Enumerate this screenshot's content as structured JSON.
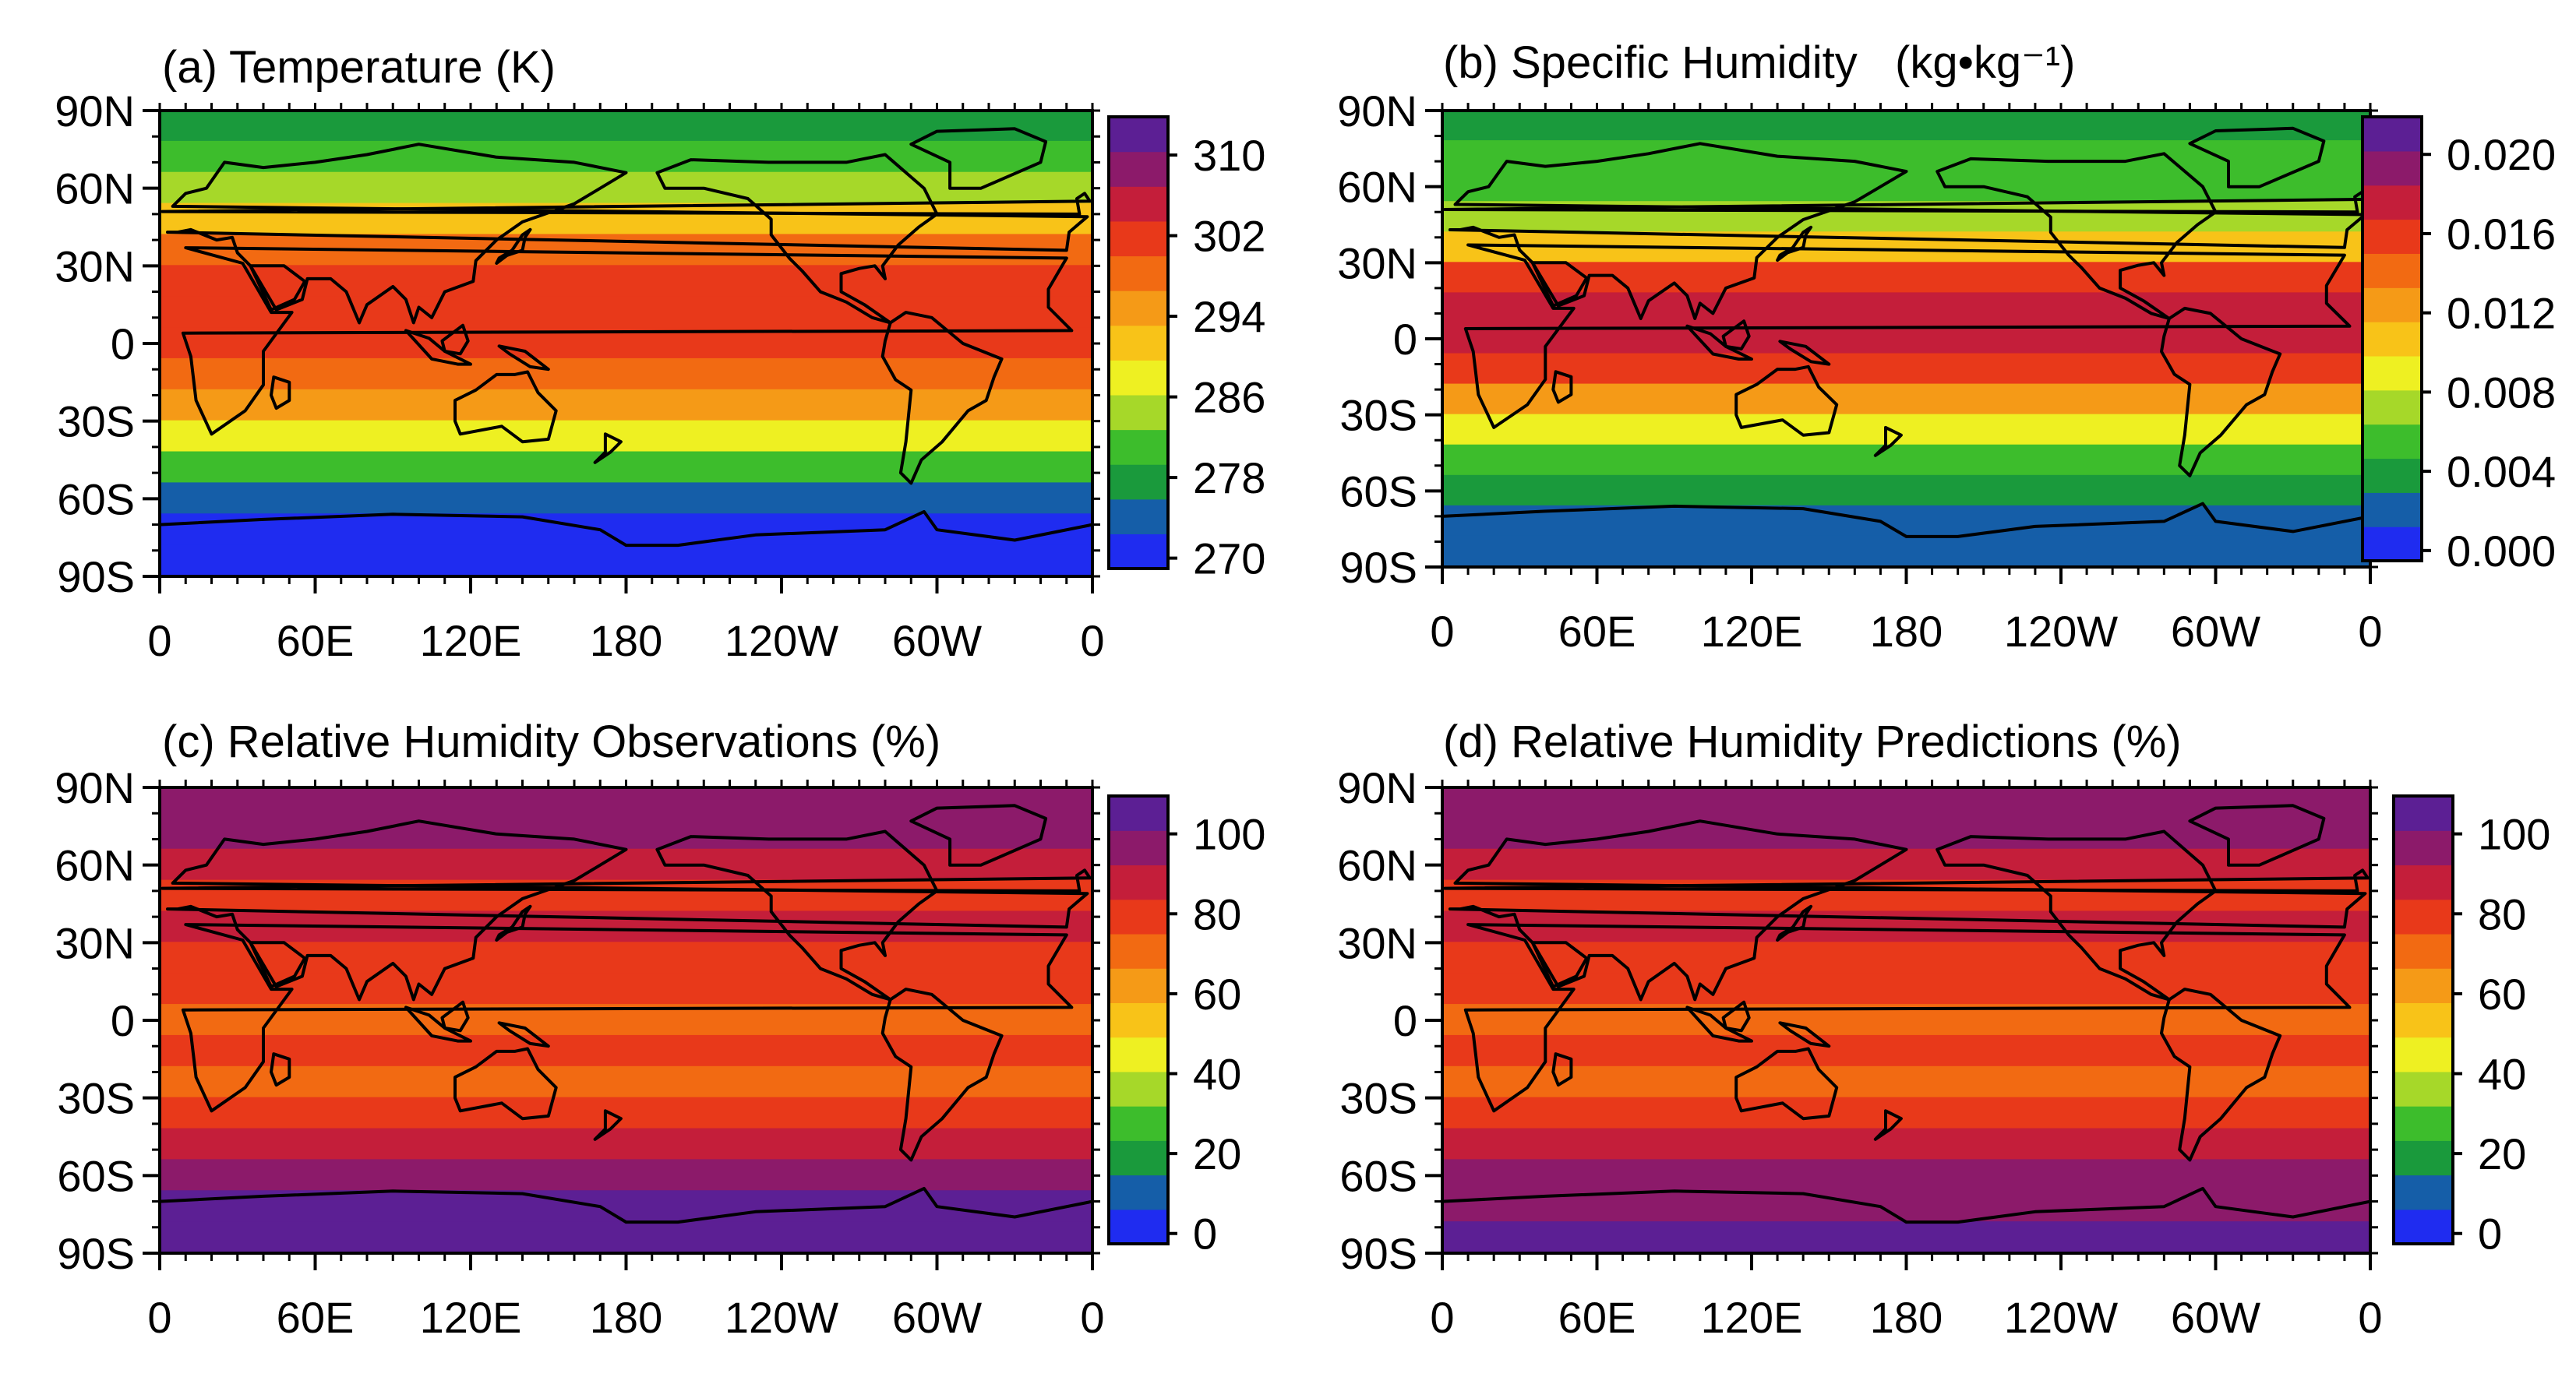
{
  "chart_data": [
    {
      "type": "heatmap",
      "panel": "(a)",
      "title": "(a) Temperature (K)",
      "x_ticks": [
        "0",
        "60E",
        "120E",
        "180",
        "120W",
        "60W",
        "0"
      ],
      "y_ticks": [
        "90N",
        "60N",
        "30N",
        "0",
        "30S",
        "60S",
        "90S"
      ],
      "xlim": [
        0,
        360
      ],
      "ylim": [
        -90,
        90
      ],
      "colorbar_labels": [
        "310",
        "302",
        "294",
        "286",
        "278",
        "270"
      ],
      "colorbar_colors": [
        "#1f2cf0",
        "#155ea8",
        "#1a9a3c",
        "#3dbd2c",
        "#a6d829",
        "#eef022",
        "#f8c318",
        "#f59a17",
        "#f26a12",
        "#e8391a",
        "#c41e3a",
        "#8c1a6a",
        "#5c1f94"
      ],
      "legend_position": "right"
    },
    {
      "type": "heatmap",
      "panel": "(b)",
      "title": "(b) Specific Humidity",
      "units": "(kg•kg⁻¹)",
      "x_ticks": [
        "0",
        "60E",
        "120E",
        "180",
        "120W",
        "60W",
        "0"
      ],
      "y_ticks": [
        "90N",
        "60N",
        "30N",
        "0",
        "30S",
        "60S",
        "90S"
      ],
      "xlim": [
        0,
        360
      ],
      "ylim": [
        -90,
        90
      ],
      "colorbar_labels": [
        "0.020",
        "0.016",
        "0.012",
        "0.008",
        "0.004",
        "0.000"
      ],
      "colorbar_colors": [
        "#1f2cf0",
        "#155ea8",
        "#1a9a3c",
        "#3dbd2c",
        "#a6d829",
        "#eef022",
        "#f8c318",
        "#f59a17",
        "#f26a12",
        "#e8391a",
        "#c41e3a",
        "#8c1a6a",
        "#5c1f94"
      ],
      "legend_position": "right"
    },
    {
      "type": "heatmap",
      "panel": "(c)",
      "title": "(c) Relative Humidity Observations (%)",
      "x_ticks": [
        "0",
        "60E",
        "120E",
        "180",
        "120W",
        "60W",
        "0"
      ],
      "y_ticks": [
        "90N",
        "60N",
        "30N",
        "0",
        "30S",
        "60S",
        "90S"
      ],
      "xlim": [
        0,
        360
      ],
      "ylim": [
        -90,
        90
      ],
      "colorbar_labels": [
        "100",
        "80",
        "60",
        "40",
        "20",
        "0"
      ],
      "colorbar_colors": [
        "#1f2cf0",
        "#155ea8",
        "#1a9a3c",
        "#3dbd2c",
        "#a6d829",
        "#eef022",
        "#f8c318",
        "#f59a17",
        "#f26a12",
        "#e8391a",
        "#c41e3a",
        "#8c1a6a",
        "#5c1f94"
      ],
      "legend_position": "right"
    },
    {
      "type": "heatmap",
      "panel": "(d)",
      "title": "(d) Relative Humidity Predictions (%)",
      "x_ticks": [
        "0",
        "60E",
        "120E",
        "180",
        "120W",
        "60W",
        "0"
      ],
      "y_ticks": [
        "90N",
        "60N",
        "30N",
        "0",
        "30S",
        "60S",
        "90S"
      ],
      "xlim": [
        0,
        360
      ],
      "ylim": [
        -90,
        90
      ],
      "colorbar_labels": [
        "100",
        "80",
        "60",
        "40",
        "20",
        "0"
      ],
      "colorbar_colors": [
        "#1f2cf0",
        "#155ea8",
        "#1a9a3c",
        "#3dbd2c",
        "#a6d829",
        "#eef022",
        "#f8c318",
        "#f59a17",
        "#f26a12",
        "#e8391a",
        "#c41e3a",
        "#8c1a6a",
        "#5c1f94"
      ],
      "legend_position": "right"
    }
  ]
}
